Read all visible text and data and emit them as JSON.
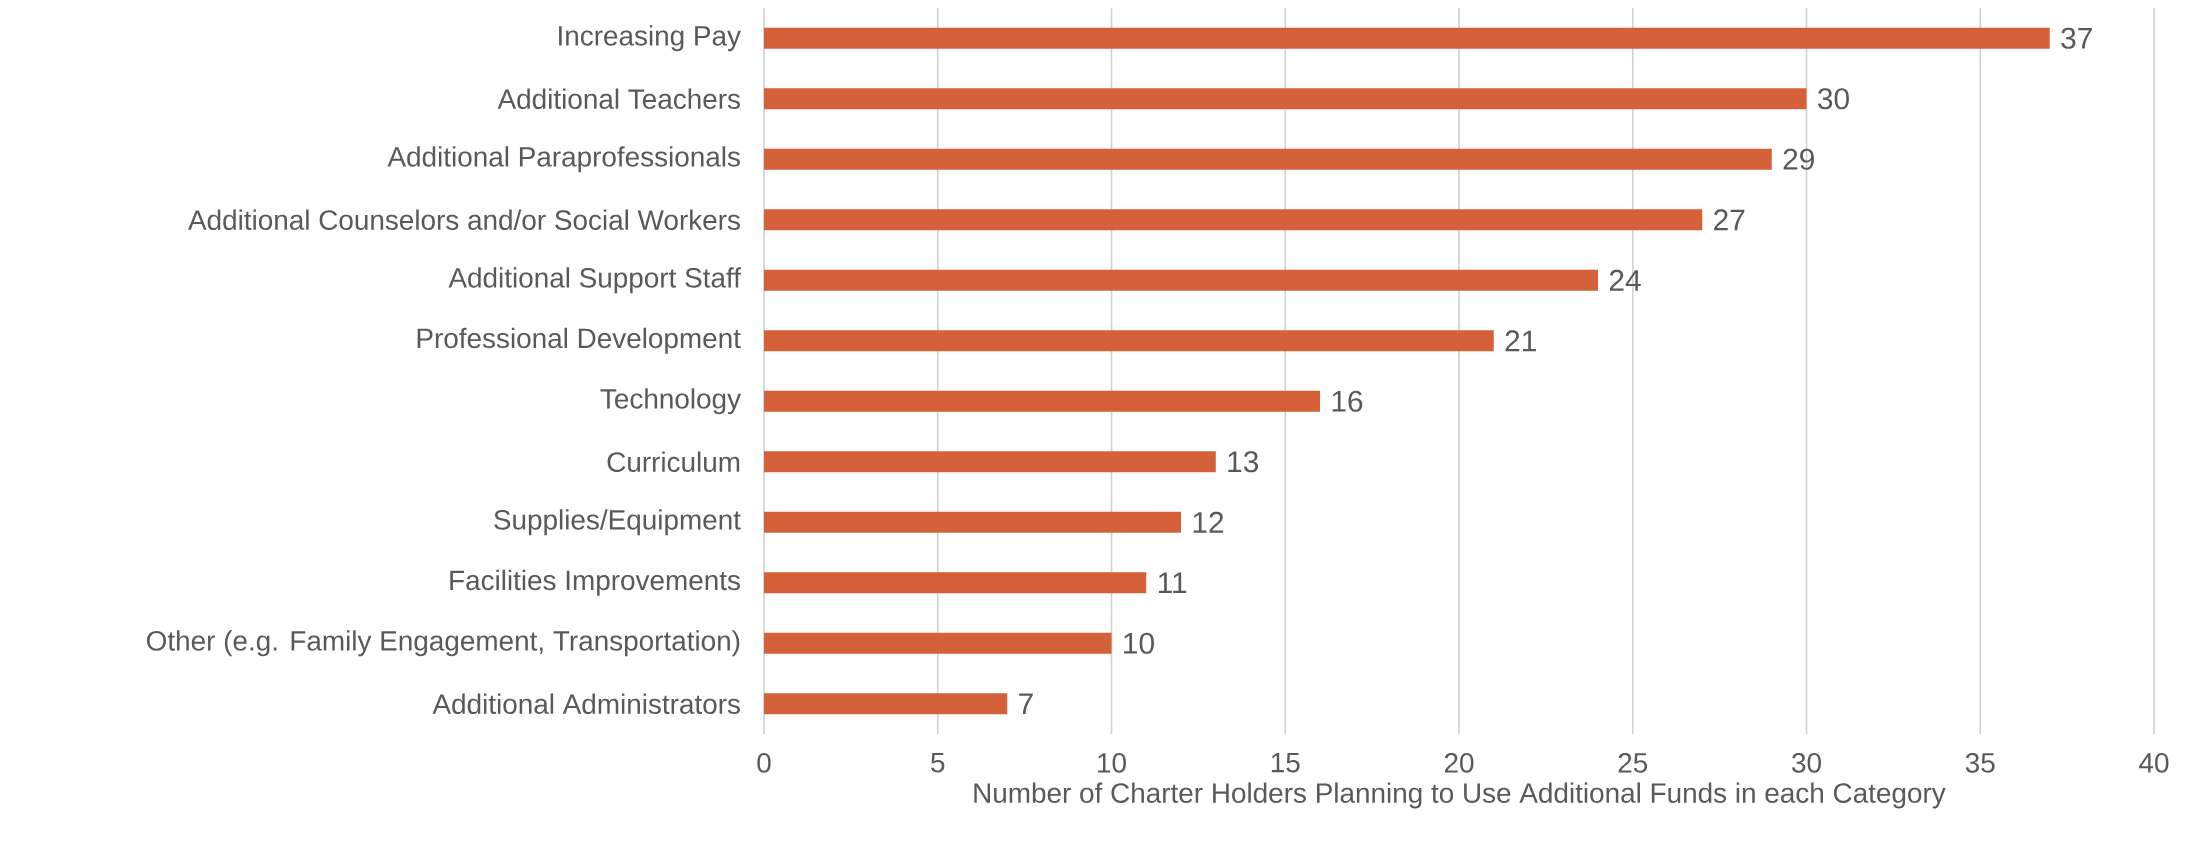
{
  "chart_data": {
    "type": "bar",
    "orientation": "horizontal",
    "xlabel": "Number of Charter Holders Planning to Use Additional Funds in each Category",
    "categories": [
      "Increasing Pay",
      "Additional Teachers",
      "Additional Paraprofessionals",
      "Additional Counselors and/or Social Workers",
      "Additional Support Staff",
      "Professional Development",
      "Technology",
      "Curriculum",
      "Supplies/Equipment",
      "Facilities Improvements",
      "Other (e.g. Family Engagement, Transportation)",
      "Additional Administrators"
    ],
    "values": [
      37,
      30,
      29,
      27,
      24,
      21,
      16,
      13,
      12,
      11,
      10,
      7
    ],
    "color": "#d5613a",
    "xlim": [
      0,
      40
    ],
    "xticks": [
      0,
      5,
      10,
      15,
      20,
      25,
      30,
      35,
      40
    ],
    "grid": "x",
    "data_labels": true
  }
}
